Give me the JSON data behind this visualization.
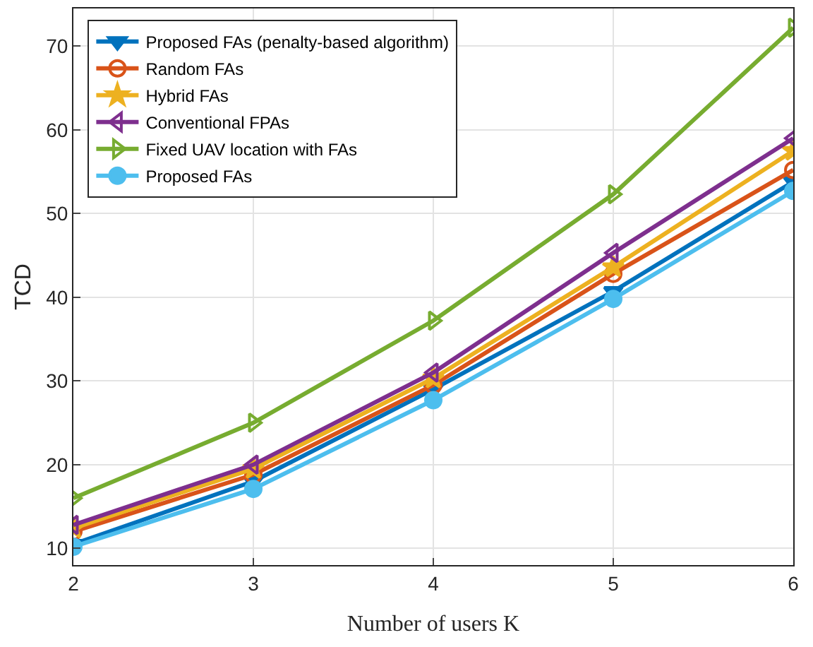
{
  "chart_data": {
    "type": "line",
    "xlabel": "Number of users K",
    "ylabel": "TCD",
    "x": [
      2,
      3,
      4,
      5,
      6
    ],
    "xlim": [
      2,
      6
    ],
    "xticks": [
      2,
      3,
      4,
      5,
      6
    ],
    "ylim": [
      8,
      74.5
    ],
    "yticks": [
      10,
      20,
      30,
      40,
      50,
      60,
      70
    ],
    "grid": true,
    "legend": "top left",
    "line_style": "solid",
    "series": [
      {
        "name": "Proposed FAs (penalty-based algorithm)",
        "color": "#0072bd",
        "marker": "triangle-down",
        "values": [
          10.5,
          18,
          29,
          40.7,
          53.8
        ]
      },
      {
        "name": "Random FAs",
        "color": "#d95319",
        "marker": "circle-open",
        "values": [
          12,
          18.8,
          29.5,
          42.8,
          55.2
        ]
      },
      {
        "name": "Hybrid FAs",
        "color": "#edb120",
        "marker": "star",
        "values": [
          12.4,
          19.5,
          30.3,
          43.6,
          57.5
        ]
      },
      {
        "name": "Conventional FPAs",
        "color": "#7e2f8e",
        "marker": "triangle-left-open",
        "values": [
          12.8,
          20,
          31,
          45.3,
          59
        ]
      },
      {
        "name": "Fixed UAV location with FAs",
        "color": "#77ac30",
        "marker": "triangle-right-open",
        "values": [
          16,
          25,
          37.2,
          52.3,
          72.2
        ]
      },
      {
        "name": "Proposed FAs",
        "color": "#4dbeee",
        "marker": "circle",
        "values": [
          10.2,
          17.1,
          27.7,
          39.8,
          52.7
        ]
      }
    ]
  }
}
